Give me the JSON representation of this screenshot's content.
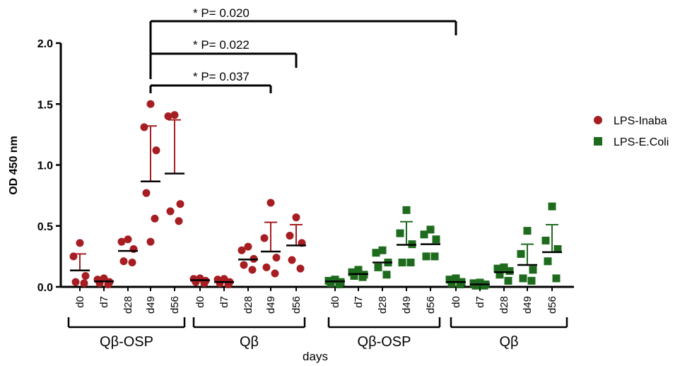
{
  "chart_data": {
    "type": "scatter",
    "ylabel": "OD 450 nm",
    "xlabel": "days",
    "ylim": [
      0,
      2.0
    ],
    "yticks": [
      "0.0",
      "0.5",
      "1.0",
      "1.5",
      "2.0"
    ],
    "categories": [
      "d0",
      "d7",
      "d28",
      "d49",
      "d56",
      "d0",
      "d7",
      "d28",
      "d49",
      "d56",
      "d0",
      "d7",
      "d28",
      "d49",
      "d56",
      "d0",
      "d7",
      "d28",
      "d49",
      "d56"
    ],
    "groups": [
      {
        "label": "Qβ-OSP",
        "series": "LPS-Inaba"
      },
      {
        "label": "Qβ",
        "series": "LPS-Inaba"
      },
      {
        "label": "Qβ-OSP",
        "series": "LPS-E.Coli"
      },
      {
        "label": "Qβ",
        "series": "LPS-E.Coli"
      }
    ],
    "series": [
      {
        "name": "LPS-Inaba",
        "color": "#a61d22",
        "marker": "circle",
        "points": [
          {
            "values": [
              0.36,
              0.25,
              0.09,
              0.04,
              0.03
            ],
            "mean": 0.135,
            "sd_upper": 0.27
          },
          {
            "values": [
              0.07,
              0.06,
              0.04,
              0.03,
              0.02
            ],
            "mean": 0.045,
            "sd_upper": 0.045
          },
          {
            "values": [
              0.39,
              0.37,
              0.31,
              0.21,
              0.2
            ],
            "mean": 0.295,
            "sd_upper": 0.295
          },
          {
            "values": [
              1.5,
              1.31,
              1.12,
              0.77,
              0.56,
              0.37
            ],
            "mean": 0.865,
            "sd_upper": 1.32
          },
          {
            "values": [
              1.41,
              1.4,
              0.68,
              0.62,
              0.54
            ],
            "mean": 0.93,
            "sd_upper": 1.37
          },
          {
            "values": [
              0.07,
              0.065,
              0.05,
              0.04,
              0.03
            ],
            "mean": 0.055,
            "sd_upper": 0.055
          },
          {
            "values": [
              0.065,
              0.06,
              0.04,
              0.03,
              0.02
            ],
            "mean": 0.04,
            "sd_upper": 0.04
          },
          {
            "values": [
              0.33,
              0.3,
              0.23,
              0.18,
              0.14
            ],
            "mean": 0.225,
            "sd_upper": 0.225
          },
          {
            "values": [
              0.69,
              0.4,
              0.24,
              0.16,
              0.11
            ],
            "mean": 0.29,
            "sd_upper": 0.53
          },
          {
            "values": [
              0.57,
              0.42,
              0.36,
              0.22,
              0.15
            ],
            "mean": 0.34,
            "sd_upper": 0.51
          }
        ]
      },
      {
        "name": "LPS-E.Coli",
        "color": "#1e6b1e",
        "marker": "square",
        "points": [
          {
            "values": [
              0.06,
              0.05,
              0.04,
              0.03,
              0.02
            ],
            "mean": 0.045,
            "sd_upper": 0.045
          },
          {
            "values": [
              0.14,
              0.12,
              0.1,
              0.09,
              0.08
            ],
            "mean": 0.105,
            "sd_upper": 0.105
          },
          {
            "values": [
              0.3,
              0.28,
              0.2,
              0.16,
              0.1
            ],
            "mean": 0.2,
            "sd_upper": 0.2
          },
          {
            "values": [
              0.63,
              0.44,
              0.35,
              0.2,
              0.2
            ],
            "mean": 0.345,
            "sd_upper": 0.535
          },
          {
            "values": [
              0.47,
              0.43,
              0.39,
              0.25,
              0.25
            ],
            "mean": 0.35,
            "sd_upper": 0.35
          },
          {
            "values": [
              0.07,
              0.06,
              0.04,
              0.03,
              0.02
            ],
            "mean": 0.04,
            "sd_upper": 0.04
          },
          {
            "values": [
              0.035,
              0.03,
              0.02,
              0.01,
              0.01
            ],
            "mean": 0.02,
            "sd_upper": 0.02
          },
          {
            "values": [
              0.16,
              0.15,
              0.13,
              0.1,
              0.05
            ],
            "mean": 0.12,
            "sd_upper": 0.12
          },
          {
            "values": [
              0.46,
              0.27,
              0.14,
              0.07,
              0.05
            ],
            "mean": 0.18,
            "sd_upper": 0.35
          },
          {
            "values": [
              0.66,
              0.38,
              0.31,
              0.21,
              0.07
            ],
            "mean": 0.285,
            "sd_upper": 0.51
          }
        ]
      }
    ],
    "significance": [
      {
        "label": "* P= 0.020",
        "from_index": 3,
        "to_index": 15
      },
      {
        "label": "* P= 0.022",
        "from_index": 3,
        "to_index": 9
      },
      {
        "label": "* P= 0.037",
        "from_index": 3,
        "to_index": 8
      }
    ],
    "legend_position": "right"
  }
}
